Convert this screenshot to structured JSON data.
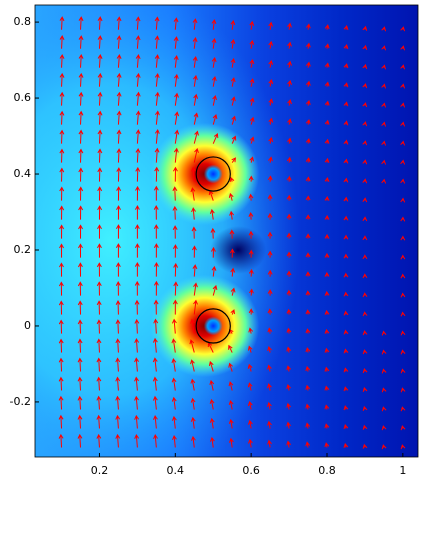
{
  "chart_data": {
    "type": "quiver",
    "xlim": [
      0.03,
      1.04
    ],
    "ylim": [
      -0.345,
      0.845
    ],
    "xticks": [
      0.2,
      0.4,
      0.6,
      0.8,
      1
    ],
    "yticks": [
      -0.2,
      0,
      0.2,
      0.4,
      0.6,
      0.8
    ],
    "circles": [
      {
        "x": 0.5,
        "y": 0.4,
        "r": 0.045
      },
      {
        "x": 0.5,
        "y": 0,
        "r": 0.045
      }
    ],
    "arrow_color": "#ff0000"
  }
}
